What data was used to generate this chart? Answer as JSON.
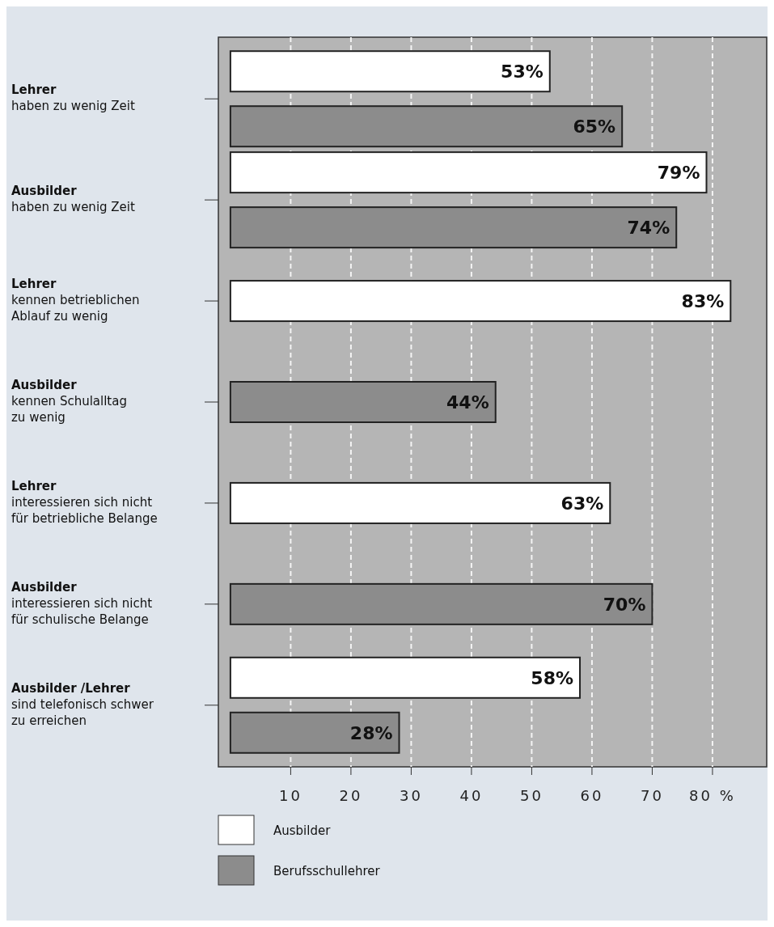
{
  "chart_data": {
    "type": "bar",
    "orientation": "horizontal",
    "categories": [
      "Lehrer\nhaben zu wenig Zeit",
      "Ausbilder\nhaben zu wenig Zeit",
      "Lehrer\nkennen betrieblichen\nAblauf zu wenig",
      "Ausbilder\nkennen Schulalltag\nzu wenig",
      "Lehrer\ninteressieren sich nicht\nfür betriebliche Belange",
      "Ausbilder\ninteressieren sich nicht\nfür schulische Belange",
      "Ausbilder /Lehrer\nsind telefonisch schwer\nzu erreichen"
    ],
    "series": [
      {
        "name": "Ausbilder",
        "color": "#ffffff",
        "values": [
          53,
          79,
          83,
          null,
          63,
          null,
          58
        ],
        "value_labels": [
          "53%",
          "79%",
          "83%",
          null,
          "63%",
          null,
          "58%"
        ]
      },
      {
        "name": "Berufsschullehrer",
        "color": "#8c8c8c",
        "values": [
          65,
          74,
          null,
          44,
          null,
          70,
          28
        ],
        "value_labels": [
          "65%",
          "74%",
          null,
          "44%",
          null,
          "70%",
          "28%"
        ]
      }
    ],
    "xlim": [
      -2,
      89
    ],
    "xticks": [
      10,
      20,
      30,
      40,
      50,
      60,
      70,
      {
        "value": 80,
        "label": "80 %"
      }
    ],
    "grid": "x",
    "legend": "bottom"
  }
}
